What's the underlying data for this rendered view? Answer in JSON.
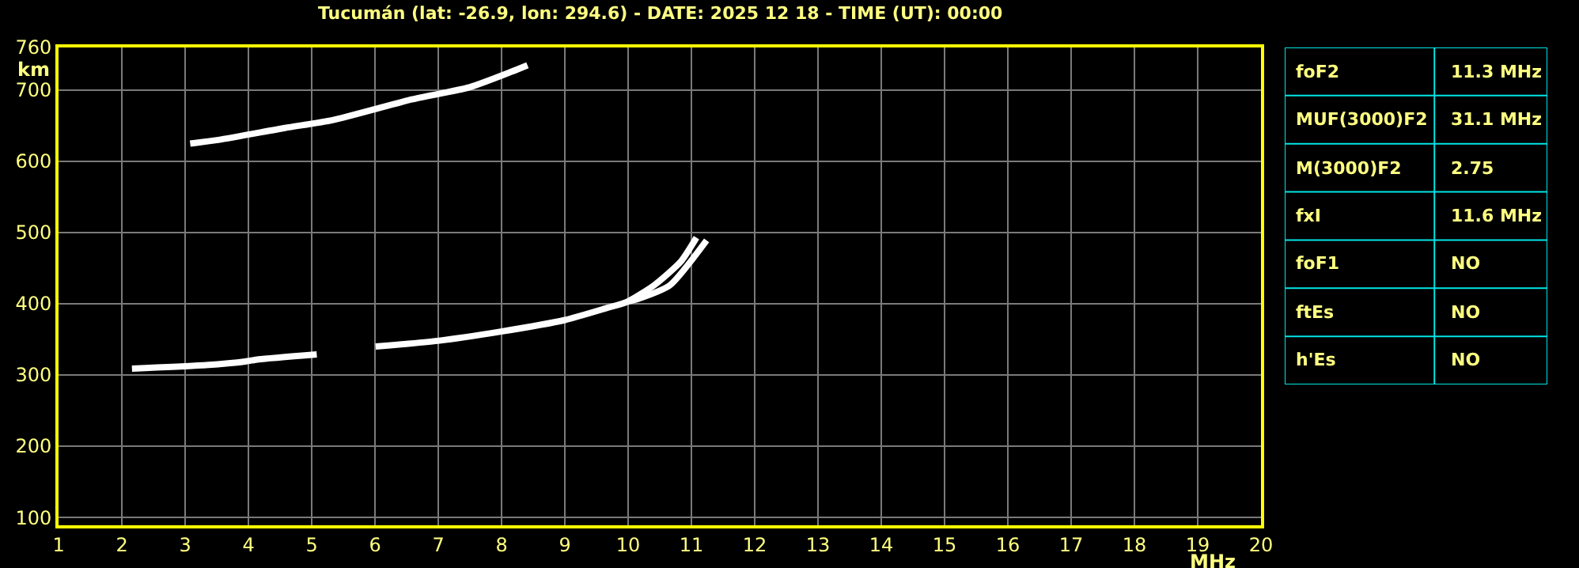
{
  "chart_data": [
    {
      "type": "line",
      "title": "Tucumán (lat: -26.9, lon: 294.6) - DATE: 2025 12 18 - TIME (UT): 00:00",
      "xlabel": "MHz",
      "ylabel": "km",
      "xlim": [
        1,
        20
      ],
      "xticks": [
        1,
        2,
        3,
        4,
        5,
        6,
        7,
        8,
        9,
        10,
        11,
        12,
        13,
        14,
        15,
        16,
        17,
        18,
        19,
        20
      ],
      "ylim": [
        89,
        760
      ],
      "yticks": [
        100,
        200,
        300,
        400,
        500,
        600,
        700,
        760
      ],
      "grid": true,
      "marker": "none",
      "line_style": "solid",
      "series": [
        {
          "color": "#ffffff",
          "x": [
            2.16,
            3.33,
            3.95,
            4.16,
            5.08,
            5.5,
            6.01,
            6.99,
            7.99,
            8.99,
            9.66,
            9.99,
            10.41,
            10.83,
            11.08
          ],
          "values": [
            309,
            314,
            319,
            322,
            329,
            null,
            340,
            348,
            361,
            377,
            394,
            403,
            426,
            459,
            493
          ]
        },
        {
          "color": "#ffffff",
          "x": [
            9.99,
            10.16,
            10.66,
            11.24
          ],
          "values": [
            403,
            407,
            426,
            489
          ]
        },
        {
          "color": "#ffffff",
          "x": [
            3.08,
            3.58,
            4.58,
            5.33,
            6.58,
            7.49,
            8.16,
            8.41
          ],
          "values": [
            625,
            631,
            647,
            658,
            687,
            704,
            726,
            735
          ]
        }
      ]
    },
    {
      "type": "other",
      "annotations": [
        "foF2",
        "11.3 MHz",
        "MUF(3000)F2",
        "31.1 MHz",
        "M(3000)F2",
        "2.75",
        "fxI",
        "11.6 MHz",
        "foF1",
        "NO",
        "ftEs",
        "NO",
        "h'Es",
        "NO"
      ]
    }
  ]
}
